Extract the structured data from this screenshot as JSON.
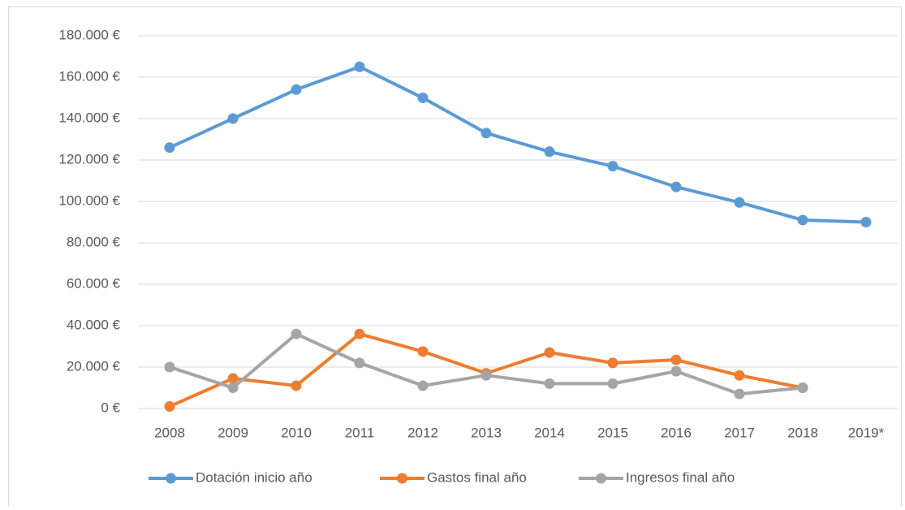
{
  "chart_data": {
    "type": "line",
    "categories": [
      "2008",
      "2009",
      "2010",
      "2011",
      "2012",
      "2013",
      "2014",
      "2015",
      "2016",
      "2017",
      "2018",
      "2019*"
    ],
    "series": [
      {
        "name": "Dotación inicio año",
        "color": "#5b9bd5",
        "values": [
          126000,
          140000,
          154000,
          165000,
          150000,
          133000,
          124000,
          117000,
          107000,
          99500,
          91000,
          90000
        ]
      },
      {
        "name": "Gastos final año",
        "color": "#ed7d31",
        "values": [
          1000,
          14500,
          11000,
          36000,
          27500,
          17000,
          27000,
          22000,
          23500,
          16000,
          10000,
          null
        ]
      },
      {
        "name": "Ingresos final año",
        "color": "#a5a5a5",
        "values": [
          20000,
          10000,
          36000,
          22000,
          11000,
          16000,
          12000,
          12000,
          18000,
          7000,
          10000,
          null
        ]
      }
    ],
    "ylim": [
      0,
      180000
    ],
    "yticks": [
      {
        "value": 0,
        "label": "0 €"
      },
      {
        "value": 20000,
        "label": "20.000 €"
      },
      {
        "value": 40000,
        "label": "40.000 €"
      },
      {
        "value": 60000,
        "label": "60.000 €"
      },
      {
        "value": 80000,
        "label": "80.000 €"
      },
      {
        "value": 100000,
        "label": "100.000 €"
      },
      {
        "value": 120000,
        "label": "120.000 €"
      },
      {
        "value": 140000,
        "label": "140.000 €"
      },
      {
        "value": 160000,
        "label": "160.000 €"
      },
      {
        "value": 180000,
        "label": "180.000 €"
      }
    ],
    "grid": true,
    "legend": "bottom"
  }
}
